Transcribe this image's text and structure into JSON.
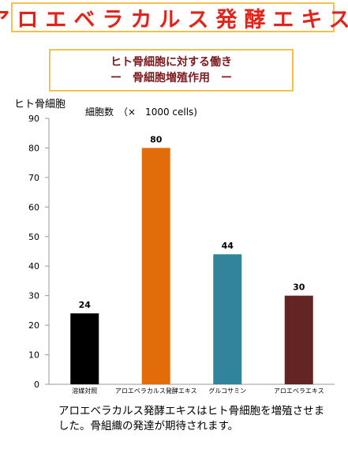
{
  "header": {
    "title": "アロエベラカルス発酵エキス"
  },
  "subtitle": {
    "line1": "ヒト骨細胞に対する働き",
    "line2": "ー　骨細胞増殖作用　ー"
  },
  "chart_data": {
    "type": "bar",
    "ylabel": "ヒト骨細胞",
    "unit_label": "細胞数　（×　1000 cells)",
    "categories": [
      "溶媒対照",
      "アロエベラカルス発酵エキス",
      "グルコサミン",
      "アロエベラエキス"
    ],
    "values": [
      24,
      80,
      44,
      30
    ],
    "data_labels": [
      "24",
      "80",
      "44",
      "30"
    ],
    "colors": [
      "#000000",
      "#e36c0a",
      "#31849b",
      "#632523"
    ],
    "ylim": [
      0,
      90
    ],
    "yticks": [
      0,
      10,
      20,
      30,
      40,
      50,
      60,
      70,
      80,
      90
    ],
    "grid": false,
    "legend": "none"
  },
  "caption": {
    "text": "アロエベラカルス発酵エキスはヒト骨細胞を増殖させました。骨組織の発達が期待されます。"
  }
}
